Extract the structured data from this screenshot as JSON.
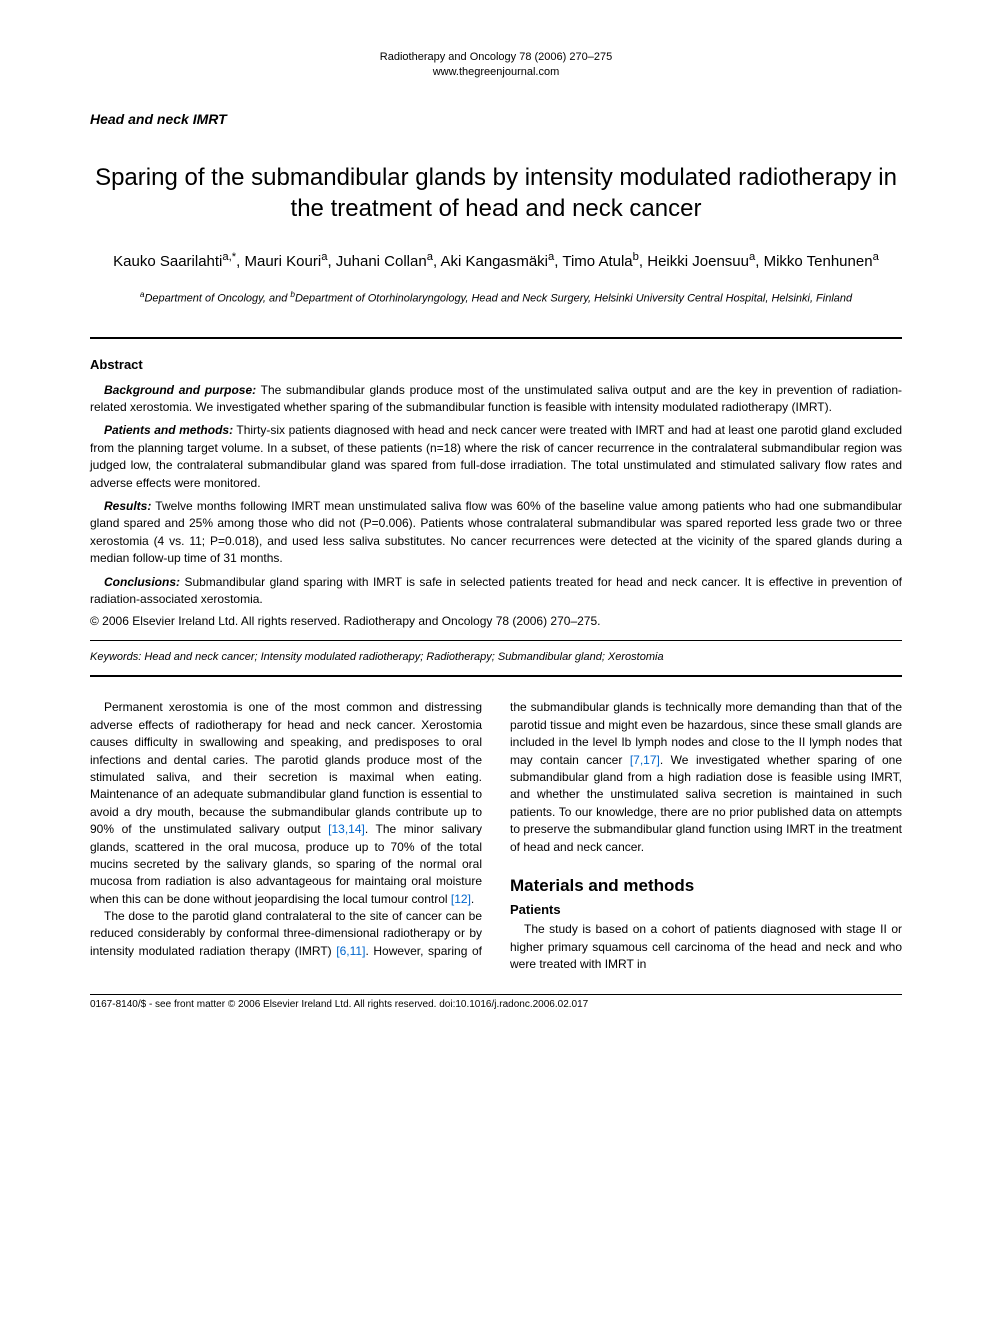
{
  "header": {
    "citation": "Radiotherapy and Oncology 78 (2006) 270–275",
    "url": "www.thegreenjournal.com"
  },
  "section_label": "Head and neck IMRT",
  "title": "Sparing of the submandibular glands by intensity modulated radiotherapy in the treatment of head and neck cancer",
  "authors_html": "Kauko Saarilahti<sup>a,*</sup>, Mauri Kouri<sup>a</sup>, Juhani Collan<sup>a</sup>, Aki Kangasmäki<sup>a</sup>, Timo Atula<sup>b</sup>, Heikki Joensuu<sup>a</sup>, Mikko Tenhunen<sup>a</sup>",
  "affiliations_html": "<sup>a</sup>Department of Oncology, and <sup>b</sup>Department of Otorhinolaryngology, Head and Neck Surgery, Helsinki University Central Hospital, Helsinki, Finland",
  "abstract": {
    "heading": "Abstract",
    "paragraphs": [
      {
        "head": "Background and purpose:",
        "text": " The submandibular glands produce most of the unstimulated saliva output and are the key in prevention of radiation-related xerostomia. We investigated whether sparing of the submandibular function is feasible with intensity modulated radiotherapy (IMRT)."
      },
      {
        "head": "Patients and methods:",
        "text": " Thirty-six patients diagnosed with head and neck cancer were treated with IMRT and had at least one parotid gland excluded from the planning target volume. In a subset, of these patients (n=18) where the risk of cancer recurrence in the contralateral submandibular region was judged low, the contralateral submandibular gland was spared from full-dose irradiation. The total unstimulated and stimulated salivary flow rates and adverse effects were monitored."
      },
      {
        "head": "Results:",
        "text": " Twelve months following IMRT mean unstimulated saliva flow was 60% of the baseline value among patients who had one submandibular gland spared and 25% among those who did not (P=0.006). Patients whose contralateral submandibular was spared reported less grade two or three xerostomia (4 vs. 11; P=0.018), and used less saliva substitutes. No cancer recurrences were detected at the vicinity of the spared glands during a median follow-up time of 31 months."
      },
      {
        "head": "Conclusions:",
        "text": " Submandibular gland sparing with IMRT is safe in selected patients treated for head and neck cancer. It is effective in prevention of radiation-associated xerostomia."
      }
    ],
    "copyright": "© 2006 Elsevier Ireland Ltd. All rights reserved. Radiotherapy and Oncology 78 (2006) 270–275.",
    "keywords_label": "Keywords:",
    "keywords": "Head and neck cancer; Intensity modulated radiotherapy; Radiotherapy; Submandibular gland; Xerostomia"
  },
  "body": {
    "para1_pre": "Permanent xerostomia is one of the most common and distressing adverse effects of radiotherapy for head and neck cancer. Xerostomia causes difficulty in swallowing and speaking, and predisposes to oral infections and dental caries. The parotid glands produce most of the stimulated saliva, and their secretion is maximal when eating. Maintenance of an adequate submandibular gland function is essential to avoid a dry mouth, because the submandibular glands contribute up to 90% of the unstimulated salivary output ",
    "ref1": "[13,14]",
    "para1_mid": ". The minor salivary glands, scattered in the oral mucosa, produce up to 70% of the total mucins secreted by the salivary glands, so sparing of the normal oral mucosa from radiation is also advantageous for maintaing oral moisture when this can be done without jeopardising the local tumour control ",
    "ref2": "[12]",
    "para1_post": ".",
    "para2_pre": "The dose to the parotid gland contralateral to the site of cancer can be reduced considerably by conformal three-dimensional radiotherapy or by intensity modulated radiation therapy (IMRT) ",
    "ref3": "[6,11]",
    "para2_mid": ". However, sparing of the submandibular glands is technically more demanding than that of the parotid tissue and might even be hazardous, since these small glands are included in the level Ib lymph nodes and close to the II lymph nodes that may contain cancer ",
    "ref4": "[7,17]",
    "para2_post": ". We investigated whether sparing of one submandibular gland from a high radiation dose is feasible using IMRT, and whether the unstimulated saliva secretion is maintained in such patients. To our knowledge, there are no prior published data on attempts to preserve the submandibular gland function using IMRT in the treatment of head and neck cancer.",
    "h2": "Materials and methods",
    "h3": "Patients",
    "para3": "The study is based on a cohort of patients diagnosed with stage II or higher primary squamous cell carcinoma of the head and neck and who were treated with IMRT in"
  },
  "footer": "0167-8140/$ - see front matter © 2006 Elsevier Ireland Ltd. All rights reserved. doi:10.1016/j.radonc.2006.02.017"
}
